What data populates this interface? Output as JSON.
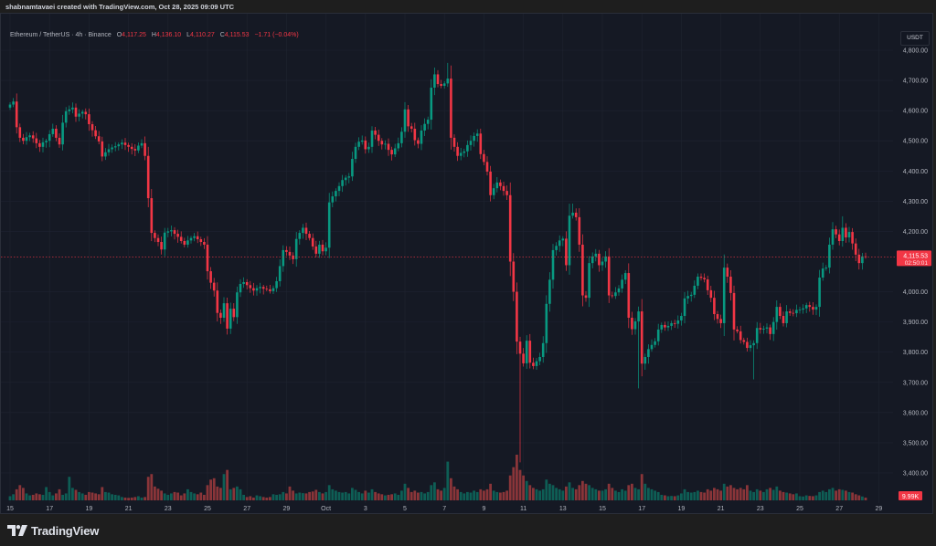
{
  "header": {
    "credit": "shabnamtavaei created with TradingView.com, Oct 28, 2025 09:09 UTC"
  },
  "legend": {
    "symbol": "Ethereum / TetherUS · 4h · Binance",
    "o_label": "O",
    "o": "4,117.25",
    "h_label": "H",
    "h": "4,136.10",
    "l_label": "L",
    "l": "4,110.27",
    "c_label": "C",
    "c": "4,115.53",
    "change": "−1.71 (−0.04%)"
  },
  "price_axis": {
    "currency_button": "USDT",
    "last_price": "4,115.53",
    "countdown": "02:50:01",
    "volume_label": "9.99K"
  },
  "footer": {
    "brand": "TradingView",
    "logo_icon": "tradingview-logo-icon"
  },
  "colors": {
    "up": "#089981",
    "down": "#f23645",
    "up_volume": "#0e5e55",
    "down_volume": "#8a3539",
    "background": "#151924",
    "grid": "#1f2330"
  },
  "chart_data": {
    "type": "candlestick",
    "interval": "4h",
    "start": "2025-09-15T00:00:00Z",
    "ylim": [
      3400,
      4800
    ],
    "yticks": [
      "4,800.00",
      "4,700.00",
      "4,600.00",
      "4,500.00",
      "4,400.00",
      "4,300.00",
      "4,200.00",
      "4,000.00",
      "3,900.00",
      "3,800.00",
      "3,700.00",
      "3,600.00",
      "3,500.00",
      "3,400.00"
    ],
    "ytick_values": [
      4800,
      4700,
      4600,
      4500,
      4400,
      4300,
      4200,
      4000,
      3900,
      3800,
      3700,
      3600,
      3500,
      3400
    ],
    "xticks": [
      {
        "label": "15",
        "date": "2025-09-15"
      },
      {
        "label": "17",
        "date": "2025-09-17"
      },
      {
        "label": "19",
        "date": "2025-09-19"
      },
      {
        "label": "21",
        "date": "2025-09-21"
      },
      {
        "label": "23",
        "date": "2025-09-23"
      },
      {
        "label": "25",
        "date": "2025-09-25"
      },
      {
        "label": "27",
        "date": "2025-09-27"
      },
      {
        "label": "29",
        "date": "2025-09-29"
      },
      {
        "label": "Oct",
        "date": "2025-10-01"
      },
      {
        "label": "3",
        "date": "2025-10-03"
      },
      {
        "label": "5",
        "date": "2025-10-05"
      },
      {
        "label": "7",
        "date": "2025-10-07"
      },
      {
        "label": "9",
        "date": "2025-10-09"
      },
      {
        "label": "11",
        "date": "2025-10-11"
      },
      {
        "label": "13",
        "date": "2025-10-13"
      },
      {
        "label": "15",
        "date": "2025-10-15"
      },
      {
        "label": "17",
        "date": "2025-10-17"
      },
      {
        "label": "19",
        "date": "2025-10-19"
      },
      {
        "label": "21",
        "date": "2025-10-21"
      },
      {
        "label": "23",
        "date": "2025-10-23"
      },
      {
        "label": "25",
        "date": "2025-10-25"
      },
      {
        "label": "27",
        "date": "2025-10-27"
      },
      {
        "label": "29",
        "date": "2025-10-29"
      }
    ],
    "first_open": 4610,
    "closes": [
      4620,
      4630,
      4545,
      4510,
      4500,
      4512,
      4518,
      4508,
      4492,
      4480,
      4495,
      4500,
      4522,
      4540,
      4510,
      4488,
      4560,
      4598,
      4604,
      4610,
      4580,
      4590,
      4596,
      4588,
      4555,
      4535,
      4515,
      4498,
      4448,
      4462,
      4472,
      4478,
      4482,
      4488,
      4494,
      4486,
      4480,
      4473,
      4468,
      4484,
      4492,
      4450,
      4310,
      4195,
      4178,
      4165,
      4140,
      4196,
      4200,
      4204,
      4192,
      4182,
      4168,
      4156,
      4170,
      4178,
      4184,
      4174,
      4165,
      4156,
      4068,
      4030,
      4004,
      3930,
      3914,
      3962,
      3878,
      3944,
      3916,
      3998,
      4026,
      4032,
      4022,
      4012,
      4004,
      4012,
      4016,
      4010,
      4008,
      4002,
      4012,
      4035,
      4085,
      4138,
      4132,
      4120,
      4108,
      4175,
      4195,
      4212,
      4192,
      4178,
      4150,
      4126,
      4156,
      4134,
      4146,
      4296,
      4316,
      4334,
      4350,
      4370,
      4378,
      4382,
      4440,
      4480,
      4497,
      4501,
      4472,
      4480,
      4534,
      4520,
      4500,
      4488,
      4490,
      4470,
      4455,
      4475,
      4492,
      4530,
      4604,
      4548,
      4540,
      4502,
      4490,
      4534,
      4556,
      4570,
      4676,
      4720,
      4688,
      4682,
      4690,
      4706,
      4510,
      4480,
      4450,
      4460,
      4465,
      4486,
      4500,
      4516,
      4524,
      4456,
      4430,
      4398,
      4320,
      4343,
      4362,
      4350,
      4334,
      4320,
      4100,
      4000,
      3835,
      3795,
      3763,
      3838,
      3765,
      3754,
      3770,
      3784,
      3830,
      3960,
      4040,
      4138,
      4152,
      4170,
      4176,
      4088,
      4252,
      4262,
      4247,
      4156,
      3988,
      3980,
      4095,
      4117,
      4126,
      4088,
      4100,
      4117,
      3988,
      3986,
      3998,
      4011,
      4040,
      4062,
      3914,
      3876,
      3902,
      3935,
      3762,
      3784,
      3810,
      3824,
      3836,
      3875,
      3890,
      3882,
      3887,
      3896,
      3894,
      3905,
      3920,
      3978,
      3986,
      3990,
      4020,
      4050,
      4046,
      4041,
      4005,
      3980,
      3926,
      3910,
      3896,
      4080,
      4050,
      3996,
      3875,
      3869,
      3840,
      3834,
      3814,
      3823,
      3830,
      3880,
      3875,
      3878,
      3882,
      3860,
      3900,
      3950,
      3920,
      3896,
      3935,
      3930,
      3929,
      3940,
      3941,
      3945,
      3956,
      3950,
      3941,
      3950,
      4047,
      4077,
      4080,
      4156,
      4207,
      4190,
      4168,
      4212,
      4180,
      4198,
      4160,
      4123,
      4095,
      4117.25,
      4115.53
    ],
    "extremes": [
      {
        "time": "2025-10-07T04:00:00Z",
        "high": 4758
      },
      {
        "time": "2025-10-10T20:00:00Z",
        "low": 3435
      },
      {
        "time": "2025-10-13T12:00:00Z",
        "high": 4292
      },
      {
        "time": "2025-10-27T04:00:00Z",
        "high": 4250
      },
      {
        "time": "2025-10-16T20:00:00Z",
        "low": 3680
      },
      {
        "time": "2025-10-22T16:00:00Z",
        "low": 3710
      }
    ],
    "volume_unit": "K",
    "volumes": [
      15,
      22,
      40,
      55,
      45,
      25,
      18,
      20,
      25,
      22,
      20,
      48,
      30,
      18,
      25,
      40,
      20,
      25,
      85,
      45,
      38,
      30,
      25,
      20,
      30,
      28,
      25,
      22,
      48,
      30,
      28,
      22,
      20,
      18,
      12,
      10,
      9,
      10,
      12,
      15,
      10,
      12,
      85,
      95,
      50,
      42,
      35,
      25,
      20,
      25,
      30,
      28,
      18,
      25,
      40,
      30,
      25,
      22,
      28,
      20,
      55,
      75,
      80,
      50,
      45,
      95,
      110,
      40,
      45,
      50,
      40,
      20,
      12,
      15,
      10,
      18,
      15,
      12,
      10,
      12,
      22,
      20,
      22,
      30,
      25,
      50,
      35,
      25,
      28,
      26,
      25,
      30,
      32,
      38,
      30,
      25,
      30,
      55,
      40,
      35,
      30,
      28,
      30,
      25,
      45,
      38,
      30,
      25,
      35,
      28,
      40,
      30,
      25,
      22,
      18,
      20,
      22,
      25,
      20,
      35,
      60,
      45,
      30,
      35,
      28,
      30,
      25,
      30,
      55,
      65,
      40,
      35,
      45,
      140,
      80,
      50,
      40,
      30,
      25,
      30,
      28,
      35,
      30,
      40,
      35,
      40,
      60,
      35,
      30,
      28,
      30,
      35,
      90,
      120,
      165,
      110,
      90,
      70,
      55,
      45,
      40,
      35,
      40,
      75,
      60,
      55,
      45,
      40,
      35,
      50,
      65,
      45,
      40,
      55,
      70,
      60,
      55,
      45,
      40,
      35,
      35,
      40,
      60,
      45,
      35,
      30,
      40,
      35,
      55,
      60,
      45,
      40,
      95,
      60,
      45,
      40,
      35,
      30,
      20,
      18,
      15,
      16,
      15,
      18,
      25,
      40,
      30,
      28,
      30,
      35,
      30,
      28,
      40,
      35,
      45,
      40,
      35,
      60,
      50,
      55,
      45,
      40,
      45,
      40,
      55,
      35,
      30,
      40,
      35,
      30,
      40,
      45,
      38,
      50,
      35,
      30,
      28,
      25,
      22,
      25,
      15,
      14,
      18,
      16,
      15,
      18,
      30,
      35,
      30,
      40,
      45,
      35,
      40,
      38,
      35,
      30,
      28,
      22,
      18,
      14,
      9.99
    ],
    "last_price": 4115.53
  }
}
